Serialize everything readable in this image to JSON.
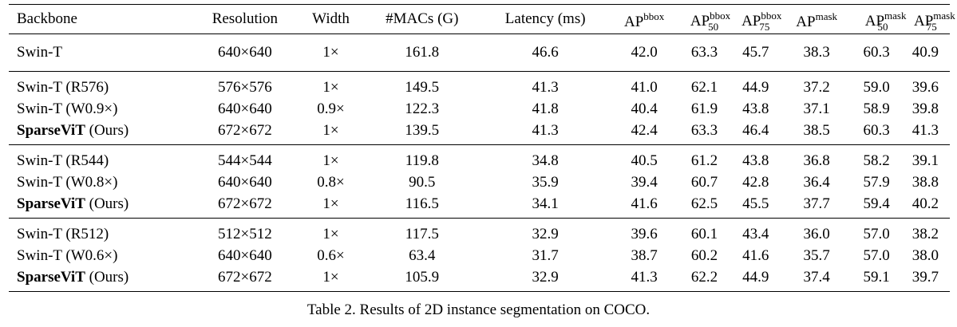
{
  "headers": {
    "backbone": "Backbone",
    "resolution": "Resolution",
    "width": "Width",
    "macs": "#MACs (G)",
    "latency": "Latency (ms)",
    "ap": "AP",
    "bbox": "bbox",
    "mask": "mask",
    "sub50": "50",
    "sub75": "75"
  },
  "rows": [
    {
      "backbone": "Swin-T",
      "backbone_suffix": "",
      "resolution": "640×640",
      "width": "1×",
      "macs": "161.8",
      "latency": "46.6",
      "ap_bbox": "42.0",
      "ap50_bbox": "63.3",
      "ap75_bbox": "45.7",
      "ap_mask": "38.3",
      "ap50_mask": "60.3",
      "ap75_mask": "40.9"
    },
    {
      "backbone": "Swin-T (R576)",
      "backbone_suffix": "",
      "resolution": "576×576",
      "width": "1×",
      "macs": "149.5",
      "latency": "41.3",
      "ap_bbox": "41.0",
      "ap50_bbox": "62.1",
      "ap75_bbox": "44.9",
      "ap_mask": "37.2",
      "ap50_mask": "59.0",
      "ap75_mask": "39.6"
    },
    {
      "backbone": "Swin-T (W0.9×)",
      "backbone_suffix": "",
      "resolution": "640×640",
      "width": "0.9×",
      "macs": "122.3",
      "latency": "41.8",
      "ap_bbox": "40.4",
      "ap50_bbox": "61.9",
      "ap75_bbox": "43.8",
      "ap_mask": "37.1",
      "ap50_mask": "58.9",
      "ap75_mask": "39.8"
    },
    {
      "backbone": "SparseViT",
      "backbone_suffix": " (Ours)",
      "resolution": "672×672",
      "width": "1×",
      "macs": "139.5",
      "latency": "41.3",
      "ap_bbox": "42.4",
      "ap50_bbox": "63.3",
      "ap75_bbox": "46.4",
      "ap_mask": "38.5",
      "ap50_mask": "60.3",
      "ap75_mask": "41.3"
    },
    {
      "backbone": "Swin-T (R544)",
      "backbone_suffix": "",
      "resolution": "544×544",
      "width": "1×",
      "macs": "119.8",
      "latency": "34.8",
      "ap_bbox": "40.5",
      "ap50_bbox": "61.2",
      "ap75_bbox": "43.8",
      "ap_mask": "36.8",
      "ap50_mask": "58.2",
      "ap75_mask": "39.1"
    },
    {
      "backbone": "Swin-T (W0.8×)",
      "backbone_suffix": "",
      "resolution": "640×640",
      "width": "0.8×",
      "macs": "90.5",
      "latency": "35.9",
      "ap_bbox": "39.4",
      "ap50_bbox": "60.7",
      "ap75_bbox": "42.8",
      "ap_mask": "36.4",
      "ap50_mask": "57.9",
      "ap75_mask": "38.8"
    },
    {
      "backbone": "SparseViT",
      "backbone_suffix": " (Ours)",
      "resolution": "672×672",
      "width": "1×",
      "macs": "116.5",
      "latency": "34.1",
      "ap_bbox": "41.6",
      "ap50_bbox": "62.5",
      "ap75_bbox": "45.5",
      "ap_mask": "37.7",
      "ap50_mask": "59.4",
      "ap75_mask": "40.2"
    },
    {
      "backbone": "Swin-T (R512)",
      "backbone_suffix": "",
      "resolution": "512×512",
      "width": "1×",
      "macs": "117.5",
      "latency": "32.9",
      "ap_bbox": "39.6",
      "ap50_bbox": "60.1",
      "ap75_bbox": "43.4",
      "ap_mask": "36.0",
      "ap50_mask": "57.0",
      "ap75_mask": "38.2"
    },
    {
      "backbone": "Swin-T (W0.6×)",
      "backbone_suffix": "",
      "resolution": "640×640",
      "width": "0.6×",
      "macs": "63.4",
      "latency": "31.7",
      "ap_bbox": "38.7",
      "ap50_bbox": "60.2",
      "ap75_bbox": "41.6",
      "ap_mask": "35.7",
      "ap50_mask": "57.0",
      "ap75_mask": "38.0"
    },
    {
      "backbone": "SparseViT",
      "backbone_suffix": " (Ours)",
      "resolution": "672×672",
      "width": "1×",
      "macs": "105.9",
      "latency": "32.9",
      "ap_bbox": "41.3",
      "ap50_bbox": "62.2",
      "ap75_bbox": "44.9",
      "ap_mask": "37.4",
      "ap50_mask": "59.1",
      "ap75_mask": "39.7"
    }
  ],
  "caption": "Table 2. Results of 2D instance segmentation on COCO."
}
